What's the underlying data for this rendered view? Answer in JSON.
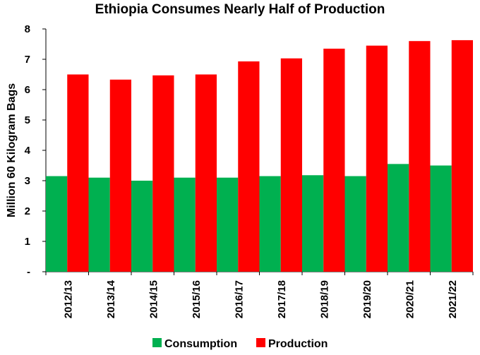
{
  "chart_data": {
    "type": "bar",
    "title": "Ethiopia Consumes Nearly Half of Production",
    "ylabel": "Million 60 Kilogram Bags",
    "xlabel": "",
    "categories": [
      "2012/13",
      "2013/14",
      "2014/15",
      "2015/16",
      "2016/17",
      "2017/18",
      "2018/19",
      "2019/20",
      "2020/21",
      "2021/22"
    ],
    "series": [
      {
        "name": "Consumption",
        "color": "#00b050",
        "values": [
          3.15,
          3.1,
          3.0,
          3.1,
          3.1,
          3.15,
          3.18,
          3.15,
          3.55,
          3.5
        ]
      },
      {
        "name": "Production",
        "color": "#ff0000",
        "values": [
          6.5,
          6.33,
          6.47,
          6.5,
          6.93,
          7.03,
          7.35,
          7.45,
          7.6,
          7.63
        ]
      }
    ],
    "ylim": [
      0,
      8
    ],
    "yticks": [
      "-",
      "1",
      "2",
      "3",
      "4",
      "5",
      "6",
      "7",
      "8"
    ],
    "grid": false,
    "legend_position": "bottom"
  }
}
